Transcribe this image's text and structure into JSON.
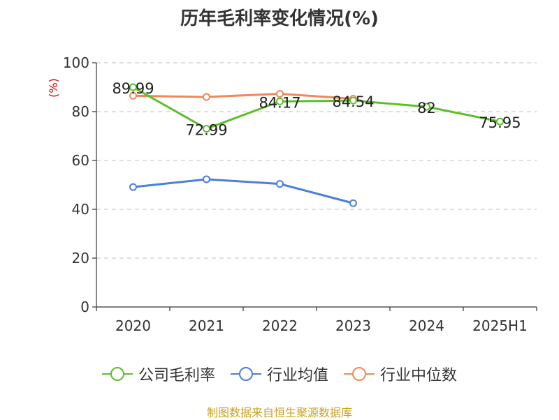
{
  "chart_data": {
    "type": "line",
    "title": "历年毛利率变化情况(%)",
    "ylabel": "(%)",
    "xlabel": "",
    "categories": [
      "2020",
      "2021",
      "2022",
      "2023",
      "2024",
      "2025H1"
    ],
    "ylim": [
      0,
      100
    ],
    "yticks": [
      0,
      20,
      40,
      60,
      80,
      100
    ],
    "grid": true,
    "legend_position": "bottom",
    "series": [
      {
        "name": "公司毛利率",
        "color": "#5cbf2a",
        "values": [
          89.99,
          72.99,
          84.17,
          84.54,
          82,
          75.95
        ],
        "labels": [
          "89.99",
          "72.99",
          "84.17",
          "84.54",
          "82",
          "75.95"
        ]
      },
      {
        "name": "行业均值",
        "color": "#4a7fdb",
        "values": [
          49.1,
          52.3,
          50.4,
          42.5,
          null,
          null
        ]
      },
      {
        "name": "行业中位数",
        "color": "#f2875a",
        "values": [
          86.5,
          86.0,
          87.3,
          85.3,
          null,
          null
        ]
      }
    ]
  },
  "source_note": "制图数据来自恒生聚源数据库"
}
